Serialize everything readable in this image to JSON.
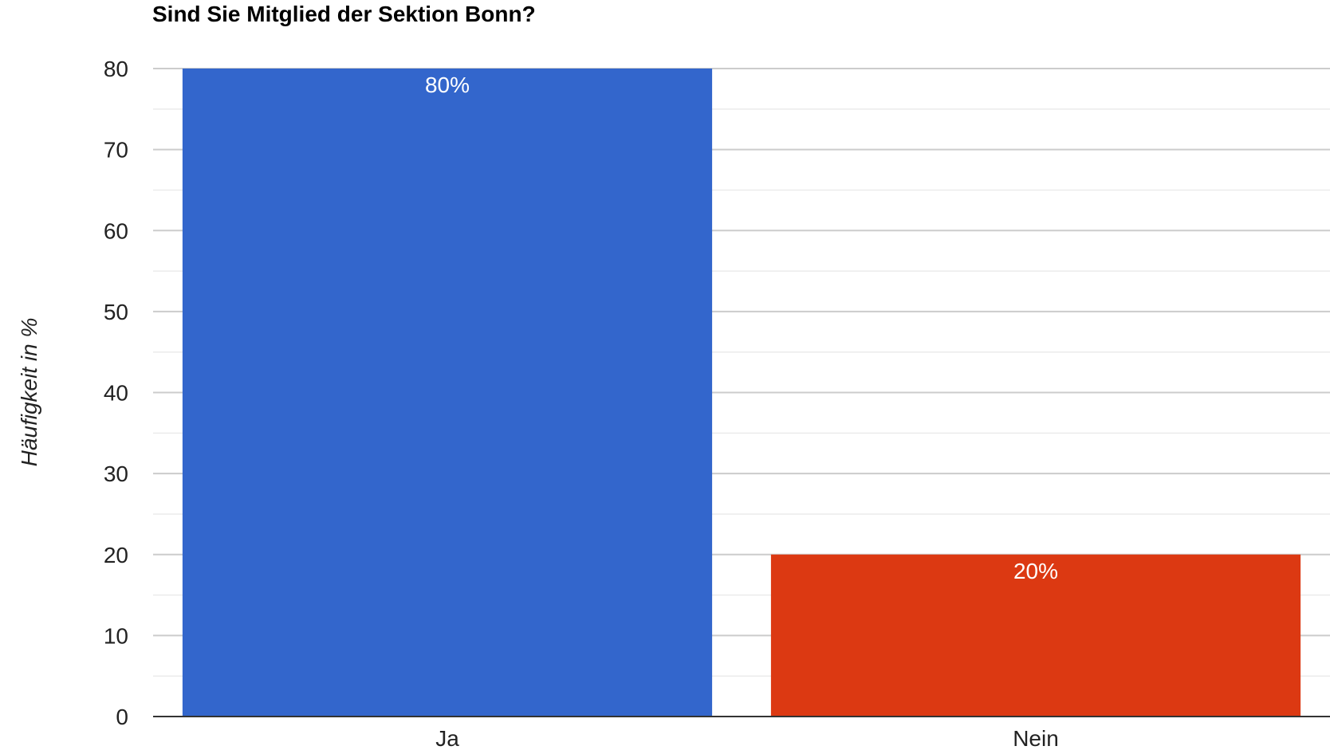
{
  "chart_data": {
    "type": "bar",
    "title": "Sind Sie Mitglied der Sektion Bonn?",
    "xlabel": "",
    "ylabel": "Häufigkeit in %",
    "categories": [
      "Ja",
      "Nein"
    ],
    "values": [
      80,
      20
    ],
    "data_labels": [
      "80%",
      "20%"
    ],
    "bar_colors": [
      "#3366cc",
      "#dc3912"
    ],
    "ylim": [
      0,
      80
    ],
    "y_ticks": [
      0,
      10,
      20,
      30,
      40,
      50,
      60,
      70,
      80
    ],
    "y_tick_labels": [
      "0",
      "10",
      "20",
      "30",
      "40",
      "50",
      "60",
      "70",
      "80"
    ],
    "grid": true,
    "legend": "none"
  },
  "colors": {
    "gridline": "#cccccc",
    "minor_gridline": "#ebebeb",
    "axis_line": "#333333",
    "tick_text": "#222222",
    "data_label_text": "#ffffff"
  }
}
